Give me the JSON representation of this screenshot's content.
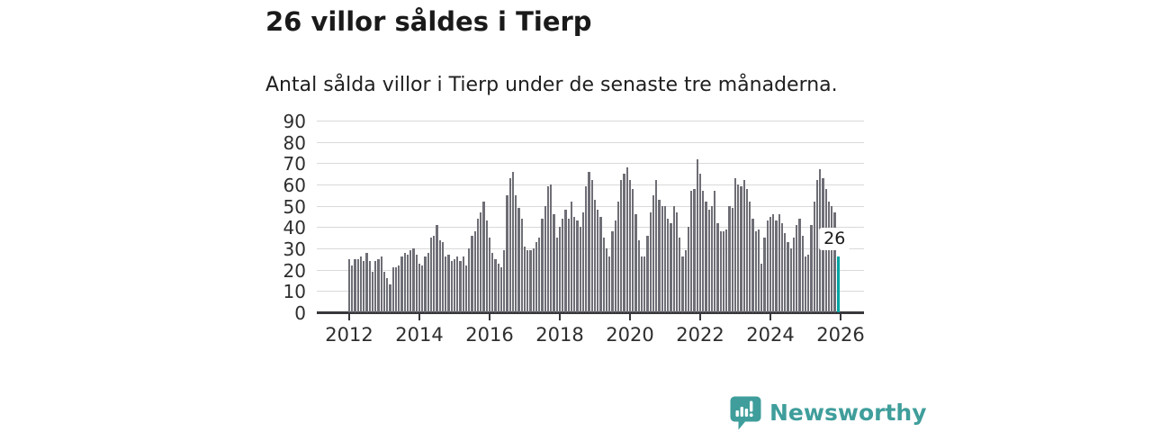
{
  "header": {
    "title": "26 villor såldes i Tierp",
    "subtitle": "Antal sålda villor i Tierp under de senaste tre månaderna."
  },
  "chart_data": {
    "type": "bar",
    "title": "26 villor såldes i Tierp",
    "subtitle": "Antal sålda villor i Tierp under de senaste tre månaderna.",
    "x_start": "2012-01",
    "x_interval": "month",
    "x_tick_labels": [
      "2012",
      "2014",
      "2016",
      "2018",
      "2020",
      "2022",
      "2024",
      "2026"
    ],
    "y_ticks": [
      0,
      10,
      20,
      30,
      40,
      50,
      60,
      70,
      80,
      90
    ],
    "ylim": [
      0,
      90
    ],
    "grid": true,
    "bar_color": "#6e6e76",
    "highlight_color": "#00a5a2",
    "annotation": "26",
    "highlight_index": 167,
    "highlight_value": 26,
    "values": [
      25,
      22,
      25,
      25,
      26,
      24,
      28,
      24,
      19,
      24,
      25,
      26,
      19,
      16,
      13,
      21,
      21,
      22,
      26,
      28,
      27,
      29,
      30,
      27,
      23,
      22,
      26,
      28,
      35,
      36,
      41,
      34,
      33,
      26,
      27,
      24,
      25,
      26,
      24,
      26,
      22,
      30,
      36,
      38,
      44,
      47,
      52,
      43,
      35,
      28,
      25,
      23,
      21,
      29,
      55,
      63,
      66,
      55,
      49,
      44,
      31,
      29,
      29,
      30,
      33,
      35,
      44,
      50,
      59,
      60,
      46,
      35,
      40,
      44,
      48,
      44,
      52,
      45,
      43,
      40,
      47,
      59,
      66,
      62,
      53,
      48,
      45,
      35,
      30,
      26,
      38,
      43,
      52,
      62,
      65,
      68,
      62,
      58,
      46,
      34,
      26,
      26,
      36,
      47,
      55,
      62,
      53,
      50,
      50,
      44,
      42,
      50,
      47,
      35,
      26,
      29,
      40,
      57,
      58,
      72,
      65,
      57,
      52,
      48,
      50,
      57,
      42,
      38,
      38,
      39,
      50,
      49,
      63,
      60,
      59,
      62,
      58,
      52,
      44,
      38,
      39,
      23,
      35,
      43,
      45,
      46,
      43,
      46,
      42,
      37,
      33,
      30,
      35,
      41,
      44,
      36,
      26,
      27,
      41,
      52,
      62,
      67,
      63,
      58,
      52,
      50,
      47,
      26
    ]
  },
  "footer": {
    "brand": "Newsworthy",
    "brand_color": "#3f9e9b",
    "logo_icon": "bar-chart-speech-bubble-icon"
  }
}
